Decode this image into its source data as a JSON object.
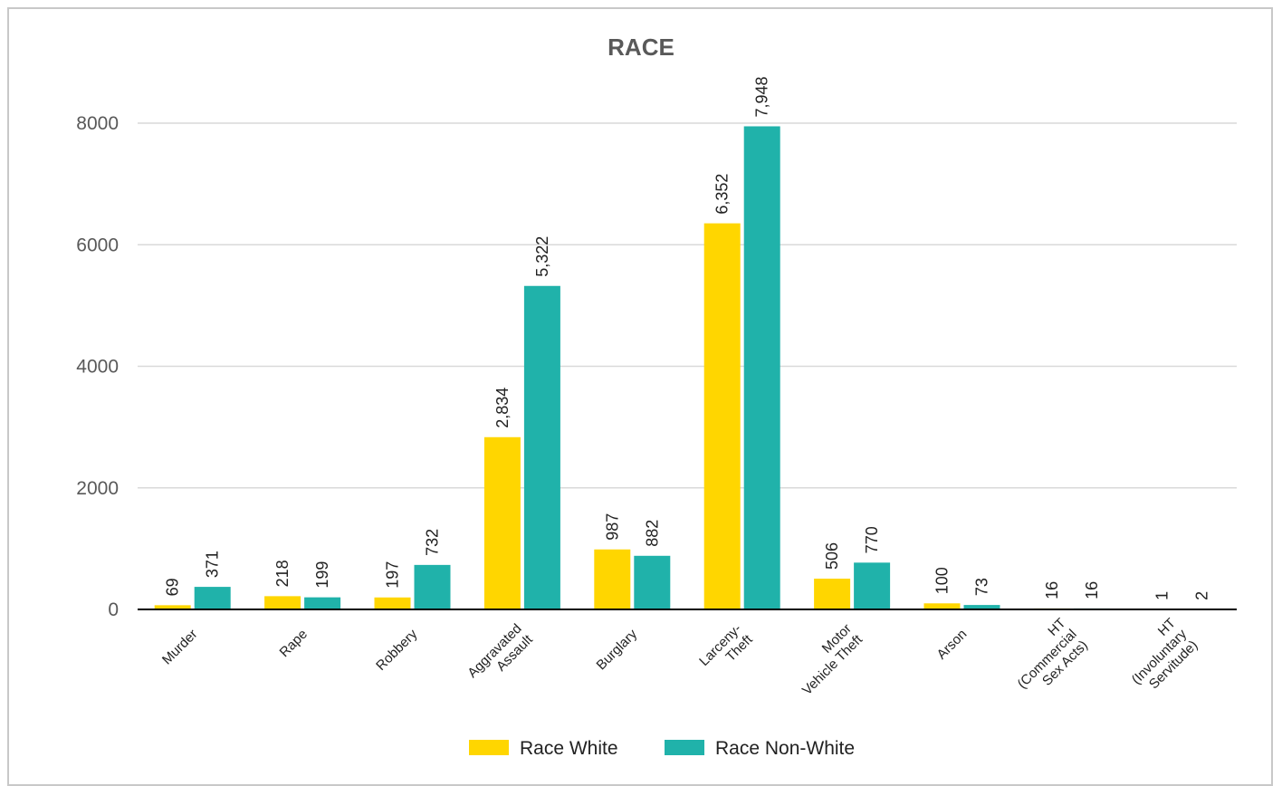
{
  "chart_data": {
    "type": "bar",
    "title": "RACE",
    "categories": [
      [
        "Murder"
      ],
      [
        "Rape"
      ],
      [
        "Robbery"
      ],
      [
        "Aggravated",
        "Assault"
      ],
      [
        "Burglary"
      ],
      [
        "Larceny-",
        "Theft"
      ],
      [
        "Motor",
        "Vehicle Theft"
      ],
      [
        "Arson"
      ],
      [
        "HT",
        "(Commercial",
        "Sex Acts)"
      ],
      [
        "HT",
        "(Involuntary",
        "Servitude)"
      ]
    ],
    "series": [
      {
        "name": "Race White",
        "color": "#FFD600",
        "values": [
          69,
          218,
          197,
          2834,
          987,
          6352,
          506,
          100,
          16,
          1
        ],
        "labels": [
          "69",
          "218",
          "197",
          "2,834",
          "987",
          "6,352",
          "506",
          "100",
          "16",
          "1"
        ]
      },
      {
        "name": "Race Non-White",
        "color": "#20B2AA",
        "values": [
          371,
          199,
          732,
          5322,
          882,
          7948,
          770,
          73,
          16,
          2
        ],
        "labels": [
          "371",
          "199",
          "732",
          "5,322",
          "882",
          "7,948",
          "770",
          "73",
          "16",
          "2"
        ]
      }
    ],
    "yticks": [
      "0",
      "2000",
      "4000",
      "6000",
      "8000"
    ],
    "ylim": [
      0,
      8000
    ],
    "grid": true,
    "legend_position": "bottom"
  }
}
